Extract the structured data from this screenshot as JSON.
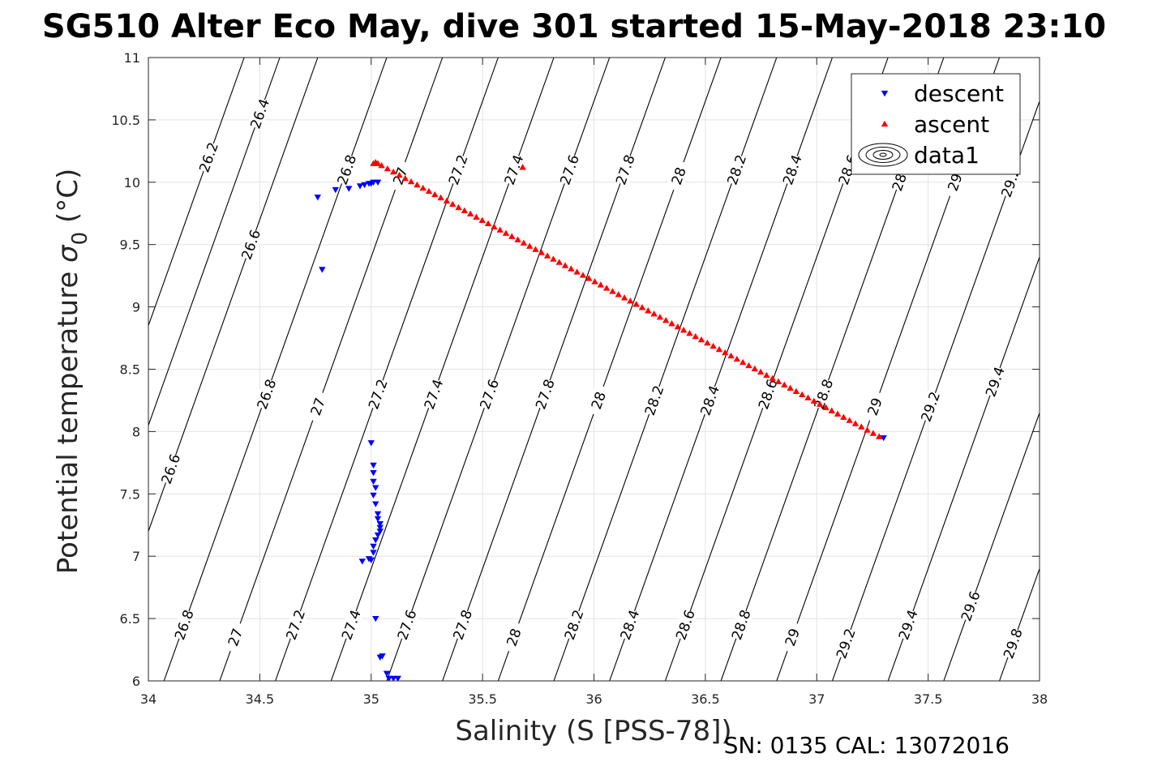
{
  "chart_data": {
    "type": "scatter",
    "title": "SG510 Alter Eco May, dive 301 started 15-May-2018 23:10",
    "xlabel": "Salinity (S [PSS-78])",
    "ylabel": "Potential temperature σ₀ (°C)",
    "ylabel_main": "Potential temperature ",
    "ylabel_sigma": "σ",
    "ylabel_sub": "0",
    "ylabel_unit": " (°C)",
    "xlim": [
      34,
      38
    ],
    "ylim": [
      6,
      11
    ],
    "x_ticks": [
      "34",
      "34.5",
      "35",
      "35.5",
      "36",
      "36.5",
      "37",
      "37.5",
      "38"
    ],
    "y_ticks": [
      "6",
      "6.5",
      "7",
      "7.5",
      "8",
      "8.5",
      "9",
      "9.5",
      "10",
      "10.5",
      "11"
    ],
    "grid": true,
    "legend_position": "top-right",
    "series": [
      {
        "name": "descent",
        "marker": "triangle-down",
        "color": "#0000ff",
        "points": [
          [
            34.76,
            9.88
          ],
          [
            34.78,
            9.3
          ],
          [
            34.84,
            9.94
          ],
          [
            34.9,
            9.95
          ],
          [
            34.95,
            9.97
          ],
          [
            34.97,
            9.98
          ],
          [
            34.99,
            9.99
          ],
          [
            35.0,
            9.99
          ],
          [
            35.01,
            10.0
          ],
          [
            35.03,
            10.0
          ],
          [
            35.0,
            7.91
          ],
          [
            35.01,
            7.73
          ],
          [
            35.01,
            7.67
          ],
          [
            35.01,
            7.6
          ],
          [
            35.02,
            7.55
          ],
          [
            35.01,
            7.49
          ],
          [
            35.02,
            7.42
          ],
          [
            35.03,
            7.34
          ],
          [
            35.03,
            7.3
          ],
          [
            35.04,
            7.26
          ],
          [
            35.04,
            7.23
          ],
          [
            35.04,
            7.2
          ],
          [
            35.03,
            7.17
          ],
          [
            35.02,
            7.13
          ],
          [
            35.01,
            7.08
          ],
          [
            35.01,
            7.03
          ],
          [
            34.99,
            6.98
          ],
          [
            34.96,
            6.96
          ],
          [
            35.0,
            6.97
          ],
          [
            35.02,
            6.5
          ],
          [
            35.05,
            6.2
          ],
          [
            35.04,
            6.19
          ],
          [
            35.07,
            6.06
          ],
          [
            35.08,
            6.02
          ],
          [
            35.1,
            6.02
          ],
          [
            35.12,
            6.02
          ],
          [
            37.3,
            7.95
          ]
        ]
      },
      {
        "name": "ascent",
        "marker": "triangle-up",
        "color": "#ff0000",
        "from": [
          35.02,
          10.16
        ],
        "to": [
          37.28,
          7.96
        ],
        "count": 86,
        "extra_points": [
          [
            35.01,
            10.15
          ],
          [
            35.03,
            10.15
          ],
          [
            35.68,
            10.12
          ]
        ]
      }
    ],
    "contours": {
      "name": "data1",
      "color": "#000000",
      "levels": [
        26.2,
        26.4,
        26.6,
        26.8,
        27.0,
        27.2,
        27.4,
        27.6,
        27.8,
        28.0,
        28.2,
        28.4,
        28.6,
        28.8,
        29.0,
        29.2,
        29.4,
        29.6,
        29.8
      ],
      "bottom_salinity": [
        33.43,
        33.59,
        33.76,
        34.07,
        34.32,
        34.57,
        34.82,
        35.07,
        35.32,
        35.57,
        35.82,
        36.07,
        36.32,
        36.57,
        36.82,
        37.07,
        37.32,
        37.57,
        37.82
      ],
      "slope_psu_per_degC": 0.2,
      "labels": [
        {
          "text": "26.2",
          "level": 26.2,
          "y": 10.2
        },
        {
          "text": "26.4",
          "level": 26.4,
          "y": 10.55
        },
        {
          "text": "26.8",
          "level": 26.8,
          "y": 10.1
        },
        {
          "text": "27",
          "level": 27.0,
          "y": 10.05
        },
        {
          "text": "27.2",
          "level": 27.2,
          "y": 10.1
        },
        {
          "text": "27.4",
          "level": 27.4,
          "y": 10.1
        },
        {
          "text": "27.6",
          "level": 27.6,
          "y": 10.1
        },
        {
          "text": "27.8",
          "level": 27.8,
          "y": 10.1
        },
        {
          "text": "28",
          "level": 28.0,
          "y": 10.05
        },
        {
          "text": "28.2",
          "level": 28.2,
          "y": 10.1
        },
        {
          "text": "28.4",
          "level": 28.4,
          "y": 10.1
        },
        {
          "text": "28.6",
          "level": 28.6,
          "y": 10.1
        },
        {
          "text": "28.8",
          "level": 28.8,
          "y": 10.05
        },
        {
          "text": "29",
          "level": 29.0,
          "y": 10.0
        },
        {
          "text": "29.2",
          "level": 29.2,
          "y": 10.0
        },
        {
          "text": "26.6",
          "level": 26.6,
          "y": 9.5
        },
        {
          "text": "26.6",
          "level": 26.6,
          "y": 7.7
        },
        {
          "text": "26.8",
          "level": 26.8,
          "y": 8.3
        },
        {
          "text": "27",
          "level": 27.0,
          "y": 8.2
        },
        {
          "text": "27.2",
          "level": 27.2,
          "y": 8.3
        },
        {
          "text": "27.4",
          "level": 27.4,
          "y": 8.3
        },
        {
          "text": "27.6",
          "level": 27.6,
          "y": 8.3
        },
        {
          "text": "27.8",
          "level": 27.8,
          "y": 8.3
        },
        {
          "text": "28",
          "level": 28.0,
          "y": 8.25
        },
        {
          "text": "28.2",
          "level": 28.2,
          "y": 8.25
        },
        {
          "text": "28.4",
          "level": 28.4,
          "y": 8.25
        },
        {
          "text": "28.6",
          "level": 28.6,
          "y": 8.3
        },
        {
          "text": "28.8",
          "level": 28.8,
          "y": 8.3
        },
        {
          "text": "29",
          "level": 29.0,
          "y": 8.2
        },
        {
          "text": "29.2",
          "level": 29.2,
          "y": 8.2
        },
        {
          "text": "29.4",
          "level": 29.4,
          "y": 8.4
        },
        {
          "text": "26.8",
          "level": 26.8,
          "y": 6.45
        },
        {
          "text": "27",
          "level": 27.0,
          "y": 6.35
        },
        {
          "text": "27.2",
          "level": 27.2,
          "y": 6.45
        },
        {
          "text": "27.4",
          "level": 27.4,
          "y": 6.45
        },
        {
          "text": "27.6",
          "level": 27.6,
          "y": 6.45
        },
        {
          "text": "27.8",
          "level": 27.8,
          "y": 6.45
        },
        {
          "text": "28",
          "level": 28.0,
          "y": 6.35
        },
        {
          "text": "28.2",
          "level": 28.2,
          "y": 6.45
        },
        {
          "text": "28.4",
          "level": 28.4,
          "y": 6.45
        },
        {
          "text": "28.6",
          "level": 28.6,
          "y": 6.45
        },
        {
          "text": "28.8",
          "level": 28.8,
          "y": 6.45
        },
        {
          "text": "29",
          "level": 29.0,
          "y": 6.35
        },
        {
          "text": "29.2",
          "level": 29.2,
          "y": 6.3
        },
        {
          "text": "29.4",
          "level": 29.4,
          "y": 6.45
        },
        {
          "text": "29.6",
          "level": 29.6,
          "y": 6.6
        },
        {
          "text": "29.8",
          "level": 29.8,
          "y": 6.3
        }
      ]
    },
    "legend": [
      {
        "label": "descent",
        "marker": "triangle-down",
        "color": "#0000ff"
      },
      {
        "label": "ascent",
        "marker": "triangle-up",
        "color": "#ff0000"
      },
      {
        "label": "data1",
        "marker": "contour-icon",
        "color": "#000000"
      }
    ],
    "footer": "SN: 0135  CAL: 13072016"
  }
}
